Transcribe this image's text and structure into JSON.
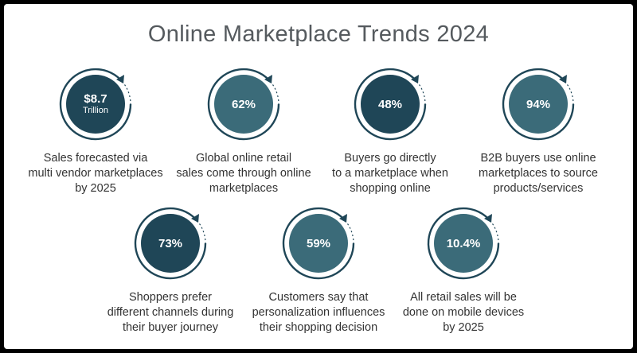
{
  "title": "Online Marketplace Trends 2024",
  "colors": {
    "dark": "#1f4657",
    "light": "#3b6b79",
    "ring": "#1f4657"
  },
  "stats": [
    {
      "value": "$8.7",
      "sub": "Trillion",
      "lines": [
        "Sales forecasted via",
        "multi vendor marketplaces",
        "by 2025"
      ]
    },
    {
      "value": "62%",
      "sub": "",
      "lines": [
        "Global online retail",
        "sales come through online",
        "marketplaces"
      ]
    },
    {
      "value": "48%",
      "sub": "",
      "lines": [
        "Buyers go directly",
        "to a marketplace when",
        "shopping online"
      ]
    },
    {
      "value": "94%",
      "sub": "",
      "lines": [
        "B2B buyers use online",
        "marketplaces to source",
        "products/services"
      ]
    },
    {
      "value": "73%",
      "sub": "",
      "lines": [
        "Shoppers prefer",
        "different channels during",
        "their buyer journey"
      ]
    },
    {
      "value": "59%",
      "sub": "",
      "lines": [
        "Customers say that",
        "personalization influences",
        "their shopping decision"
      ]
    },
    {
      "value": "10.4%",
      "sub": "",
      "lines": [
        "All retail sales will be",
        "done on mobile devices",
        "by 2025"
      ]
    }
  ]
}
